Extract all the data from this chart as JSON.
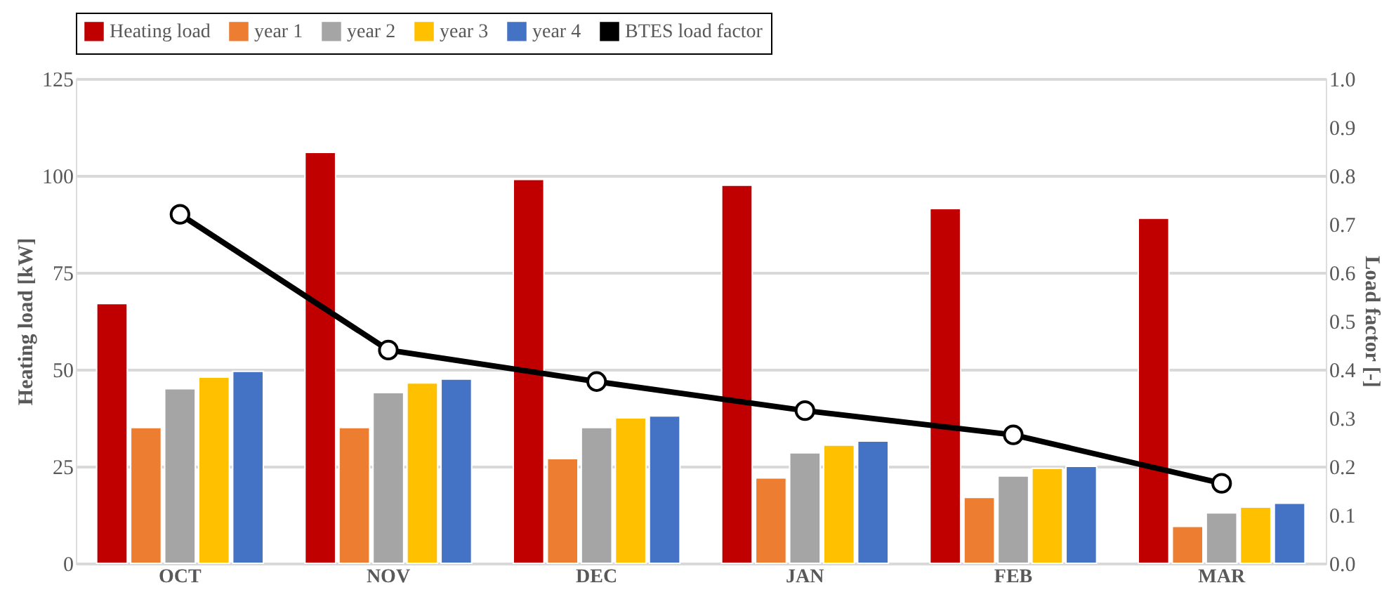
{
  "chart_data": {
    "type": "bar",
    "categories": [
      "OCT",
      "NOV",
      "DEC",
      "JAN",
      "FEB",
      "MAR"
    ],
    "ylabel": "Heating load [kW]",
    "y2label": "Load factor [-]",
    "ylim": [
      0,
      125
    ],
    "yticks": [
      0,
      25,
      50,
      75,
      100,
      125
    ],
    "y2lim": [
      0,
      1.0
    ],
    "y2ticks": [
      {
        "value": 0,
        "label": "0.0"
      },
      0.1,
      0.2,
      0.3,
      0.4,
      0.5,
      0.6,
      0.7,
      0.8,
      0.9,
      {
        "value": 1,
        "label": "1.0"
      }
    ],
    "grid": "y",
    "legend": "top",
    "series": [
      {
        "name": "Heating load",
        "color": "#c00000",
        "values": [
          67,
          106,
          99,
          97.5,
          91.5,
          89
        ]
      },
      {
        "name": "year 1",
        "color": "#ed7d31",
        "values": [
          35,
          35,
          27,
          22,
          17,
          9.5
        ]
      },
      {
        "name": "year 2",
        "color": "#a5a5a5",
        "values": [
          45,
          44,
          35,
          28.5,
          22.5,
          13
        ]
      },
      {
        "name": "year 3",
        "color": "#ffc000",
        "values": [
          48,
          46.5,
          37.5,
          30.5,
          24.5,
          14.5
        ]
      },
      {
        "name": "year 4",
        "color": "#4472c4",
        "values": [
          49.5,
          47.5,
          38,
          31.5,
          25,
          15.5
        ]
      },
      {
        "name": "BTES load factor",
        "type": "line",
        "axis": "y2",
        "color": "#000000",
        "marker": "circle",
        "line_style": "solid",
        "values": [
          0.72,
          0.44,
          0.375,
          0.315,
          0.265,
          0.165
        ]
      }
    ]
  }
}
